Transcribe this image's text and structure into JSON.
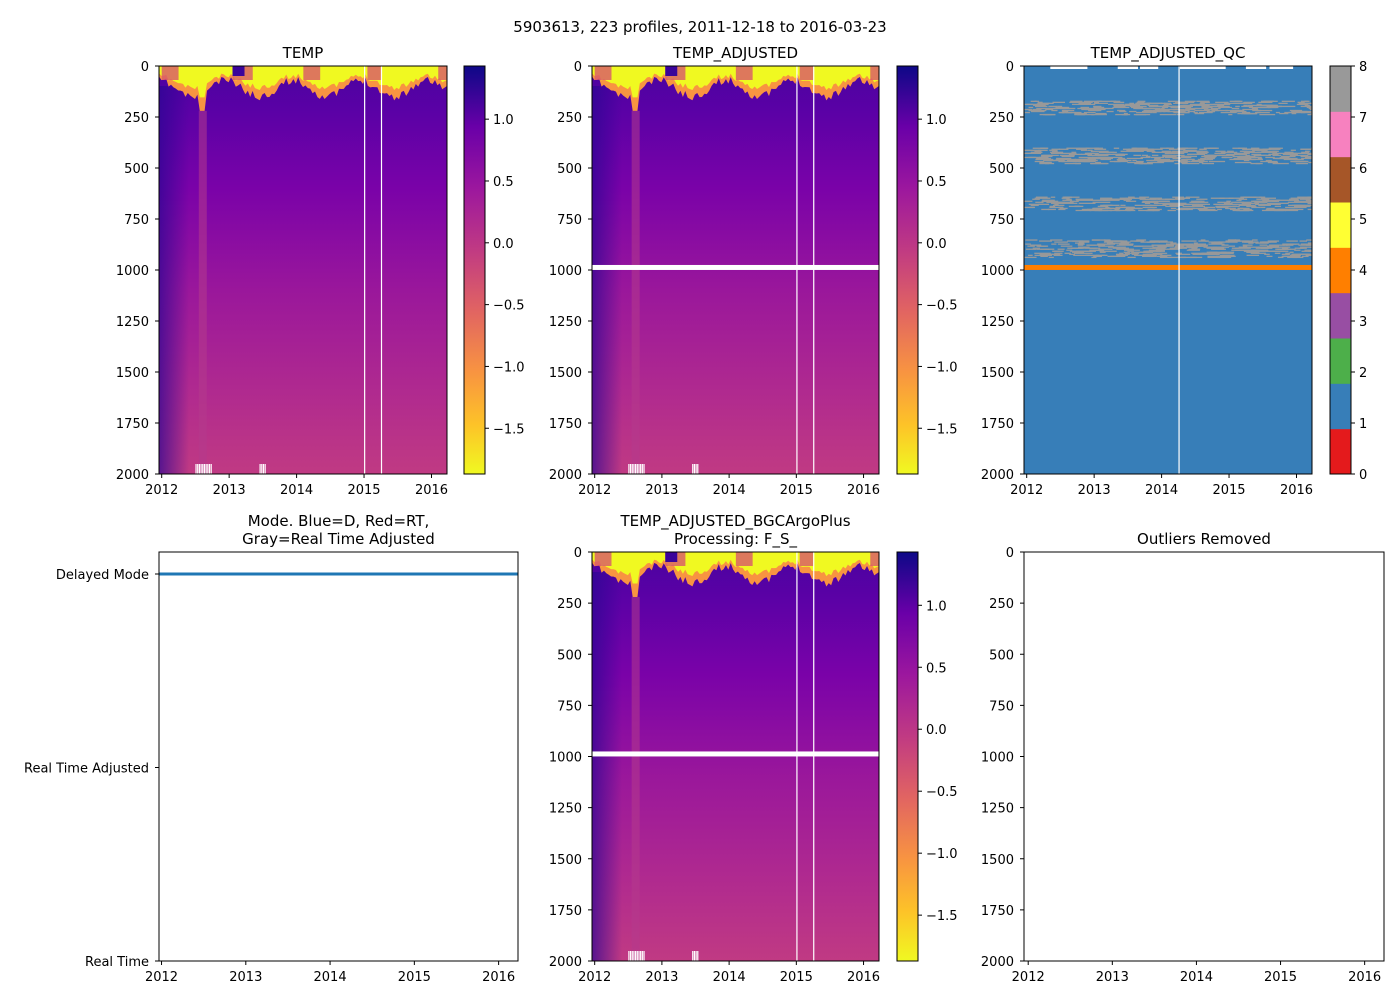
{
  "figure_title": "5903613, 223 profiles, 2011-12-18 to 2016-03-23",
  "chart_data": [
    {
      "type": "heatmap",
      "title_lines": [
        "TEMP"
      ],
      "xticks": [
        "2012",
        "2013",
        "2014",
        "2015",
        "2016"
      ],
      "xtick_values": [
        2012,
        2013,
        2014,
        2015,
        2016
      ],
      "xlim": [
        2011.96,
        2016.23
      ],
      "yticks": [
        "0",
        "250",
        "500",
        "750",
        "1000",
        "1250",
        "1500",
        "1750",
        "2000"
      ],
      "ytick_values": [
        0,
        250,
        500,
        750,
        1000,
        1250,
        1500,
        1750,
        2000
      ],
      "ylim": [
        2000,
        0
      ],
      "colormap": "plasma",
      "colorbar": {
        "ticks": [
          "1.0",
          "0.5",
          "0.0",
          "−0.5",
          "−1.0",
          "−1.5"
        ],
        "tick_values": [
          1.0,
          0.5,
          0.0,
          -0.5,
          -1.0,
          -1.5
        ],
        "range": [
          -1.87,
          1.43
        ]
      },
      "data_gaps_years": [
        2015.0,
        2015.25
      ],
      "missing_depth_band": null
    },
    {
      "type": "heatmap",
      "title_lines": [
        "TEMP_ADJUSTED"
      ],
      "xticks": [
        "2012",
        "2013",
        "2014",
        "2015",
        "2016"
      ],
      "xtick_values": [
        2012,
        2013,
        2014,
        2015,
        2016
      ],
      "xlim": [
        2011.96,
        2016.23
      ],
      "yticks": [
        "0",
        "250",
        "500",
        "750",
        "1000",
        "1250",
        "1500",
        "1750",
        "2000"
      ],
      "ytick_values": [
        0,
        250,
        500,
        750,
        1000,
        1250,
        1500,
        1750,
        2000
      ],
      "ylim": [
        2000,
        0
      ],
      "colormap": "plasma",
      "colorbar": {
        "ticks": [
          "1.0",
          "0.5",
          "0.0",
          "−0.5",
          "−1.0",
          "−1.5"
        ],
        "tick_values": [
          1.0,
          0.5,
          0.0,
          -0.5,
          -1.0,
          -1.5
        ],
        "range": [
          -1.87,
          1.43
        ]
      },
      "data_gaps_years": [
        2015.0,
        2015.25
      ],
      "missing_depth_band": 990
    },
    {
      "type": "heatmap",
      "title_lines": [
        "TEMP_ADJUSTED_QC"
      ],
      "xticks": [
        "2012",
        "2013",
        "2014",
        "2015",
        "2016"
      ],
      "xtick_values": [
        2012,
        2013,
        2014,
        2015,
        2016
      ],
      "xlim": [
        2011.96,
        2016.23
      ],
      "yticks": [
        "0",
        "250",
        "500",
        "750",
        "1000",
        "1250",
        "1500",
        "1750",
        "2000"
      ],
      "ytick_values": [
        0,
        250,
        500,
        750,
        1000,
        1250,
        1500,
        1750,
        2000
      ],
      "ylim": [
        2000,
        0
      ],
      "colormap": "qc",
      "colorbar": {
        "ticks": [
          "0",
          "1",
          "2",
          "3",
          "4",
          "5",
          "6",
          "7",
          "8"
        ],
        "tick_values": [
          0,
          1,
          2,
          3,
          4,
          5,
          6,
          7,
          8
        ],
        "range": [
          0,
          8
        ],
        "class_colors": [
          "#e41a1c",
          "#377eb8",
          "#4daf4a",
          "#984ea3",
          "#ff7f00",
          "#ffff33",
          "#a65628",
          "#f781bf",
          "#999999"
        ]
      },
      "dominant_qc": 1,
      "qc8_depth_bands": [
        [
          170,
          240
        ],
        [
          400,
          480
        ],
        [
          640,
          710
        ],
        [
          850,
          940
        ]
      ],
      "qc4_depth": 990,
      "data_gaps_years": [
        2014.25
      ]
    },
    {
      "type": "line",
      "title_lines": [
        "Mode. Blue=D, Red=RT,",
        "Gray=Real Time Adjusted"
      ],
      "xticks": [
        "2012",
        "2013",
        "2014",
        "2015",
        "2016"
      ],
      "xtick_values": [
        2012,
        2013,
        2014,
        2015,
        2016
      ],
      "xlim": [
        2011.97,
        2016.23
      ],
      "yticks": [
        "Delayed Mode",
        "Real Time Adjusted",
        "Real Time"
      ],
      "ytick_values": [
        2,
        1,
        0
      ],
      "ylim": [
        0,
        2
      ],
      "series": [
        {
          "name": "Delayed Mode",
          "color": "#1f77b4",
          "x_range": [
            2011.96,
            2016.23
          ],
          "value": 2
        }
      ]
    },
    {
      "type": "heatmap",
      "title_lines": [
        "TEMP_ADJUSTED_BGCArgoPlus",
        "Processing: F_S_"
      ],
      "xticks": [
        "2012",
        "2013",
        "2014",
        "2015",
        "2016"
      ],
      "xtick_values": [
        2012,
        2013,
        2014,
        2015,
        2016
      ],
      "xlim": [
        2011.96,
        2016.23
      ],
      "yticks": [
        "0",
        "250",
        "500",
        "750",
        "1000",
        "1250",
        "1500",
        "1750",
        "2000"
      ],
      "ytick_values": [
        0,
        250,
        500,
        750,
        1000,
        1250,
        1500,
        1750,
        2000
      ],
      "ylim": [
        2000,
        0
      ],
      "colormap": "plasma",
      "colorbar": {
        "ticks": [
          "1.0",
          "0.5",
          "0.0",
          "−0.5",
          "−1.0",
          "−1.5"
        ],
        "tick_values": [
          1.0,
          0.5,
          0.0,
          -0.5,
          -1.0,
          -1.5
        ],
        "range": [
          -1.87,
          1.43
        ]
      },
      "data_gaps_years": [
        2015.0,
        2015.25
      ],
      "missing_depth_band": 990
    },
    {
      "type": "scatter",
      "title_lines": [
        "Outliers Removed"
      ],
      "xticks": [
        "2012",
        "2013",
        "2014",
        "2015",
        "2016"
      ],
      "xtick_values": [
        2012,
        2013,
        2014,
        2015,
        2016
      ],
      "xlim": [
        2011.95,
        2016.23
      ],
      "yticks": [
        "0",
        "250",
        "500",
        "750",
        "1000",
        "1250",
        "1500",
        "1750",
        "2000"
      ],
      "ytick_values": [
        0,
        250,
        500,
        750,
        1000,
        1250,
        1500,
        1750,
        2000
      ],
      "ylim": [
        2000,
        0
      ],
      "points": []
    }
  ]
}
